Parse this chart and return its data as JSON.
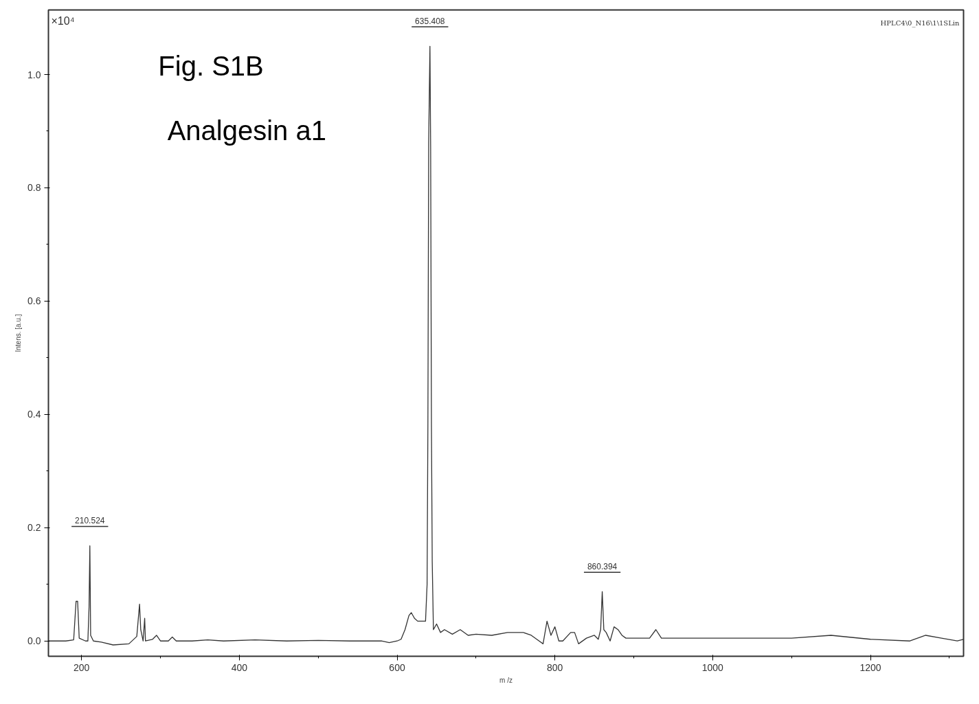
{
  "chart_data": {
    "type": "line",
    "title": "Fig. S1B",
    "subtitle": "Analgesin a1",
    "xlabel": "m /z",
    "ylabel": "Intens. [a.u.]",
    "annotations": [
      "×10⁴",
      "HPLC4\\0_N16\\1\\1SLin",
      {
        "text": "210.524",
        "x": 210.5,
        "y": 0.168
      },
      {
        "text": "635.408",
        "x": 641.6,
        "y": 1.05
      },
      {
        "text": "860.394",
        "x": 860,
        "y": 0.087
      }
    ],
    "x": [
      158,
      180,
      190,
      193,
      195,
      197,
      205,
      208,
      209.5,
      210.5,
      211.5,
      215,
      225,
      240,
      260,
      270,
      273.5,
      275,
      278,
      280,
      281,
      290,
      295,
      300,
      310,
      315,
      320,
      340,
      360,
      380,
      420,
      460,
      500,
      540,
      580,
      590,
      600,
      605,
      610,
      615,
      618,
      622,
      626,
      630,
      636,
      638,
      639,
      640,
      641.6,
      642.5,
      643.5,
      644.5,
      646,
      650,
      655,
      660,
      670,
      680,
      690,
      700,
      720,
      740,
      760,
      770,
      780,
      785,
      790,
      795,
      800,
      805,
      810,
      820,
      825,
      830,
      840,
      850,
      855,
      858,
      860,
      862,
      865,
      870,
      875,
      880,
      885,
      890,
      900,
      920,
      928,
      935,
      950,
      1000,
      1050,
      1100,
      1150,
      1200,
      1250,
      1270,
      1290,
      1310,
      1318
    ],
    "series": [
      {
        "color": "#333333",
        "values": [
          0.0,
          0.0,
          0.002,
          0.07,
          0.07,
          0.005,
          0.0,
          0.0,
          0.06,
          0.168,
          0.01,
          0.0,
          -0.002,
          -0.007,
          -0.005,
          0.008,
          0.065,
          0.02,
          0.0,
          0.04,
          0.0,
          0.003,
          0.01,
          0.0,
          0.0,
          0.007,
          0.0,
          0.0,
          0.002,
          0.0,
          0.002,
          0.0,
          0.001,
          0.0,
          0.0,
          -0.003,
          0.0,
          0.003,
          0.02,
          0.045,
          0.05,
          0.04,
          0.035,
          0.035,
          0.035,
          0.1,
          0.38,
          0.88,
          1.05,
          0.87,
          0.38,
          0.14,
          0.02,
          0.03,
          0.015,
          0.02,
          0.012,
          0.02,
          0.01,
          0.012,
          0.01,
          0.015,
          0.015,
          0.01,
          0.0,
          -0.005,
          0.035,
          0.01,
          0.025,
          0.0,
          0.0,
          0.015,
          0.015,
          -0.005,
          0.005,
          0.01,
          0.003,
          0.02,
          0.087,
          0.02,
          0.015,
          0.0,
          0.025,
          0.02,
          0.01,
          0.005,
          0.005,
          0.005,
          0.02,
          0.005,
          0.005,
          0.005,
          0.005,
          0.005,
          0.01,
          0.003,
          0.0,
          0.01,
          0.005,
          0.0,
          0.003
        ]
      }
    ],
    "xlim": [
      158,
      1318
    ],
    "ylim": [
      -0.027,
      1.114
    ],
    "xticks": [
      200,
      {
        "value": 300,
        "label": null
      },
      400,
      {
        "value": 500,
        "label": null
      },
      600,
      {
        "value": 700,
        "label": null
      },
      800,
      {
        "value": 900,
        "label": null
      },
      1000,
      {
        "value": 1100,
        "label": null
      },
      1200,
      {
        "value": 1300,
        "label": null
      }
    ],
    "yticks": [
      {
        "value": 0,
        "label": "0.0"
      },
      {
        "value": 0.1,
        "label": null
      },
      {
        "value": 0.2,
        "label": "0.2"
      },
      {
        "value": 0.3,
        "label": null
      },
      {
        "value": 0.4,
        "label": "0.4"
      },
      {
        "value": 0.5,
        "label": null
      },
      {
        "value": 0.6,
        "label": "0.6"
      },
      {
        "value": 0.7,
        "label": null
      },
      {
        "value": 0.8,
        "label": "0.8"
      },
      {
        "value": 0.9,
        "label": null
      },
      {
        "value": 1.0,
        "label": "1.0"
      }
    ],
    "grid": false,
    "marker": "none",
    "line_style": "solid"
  }
}
